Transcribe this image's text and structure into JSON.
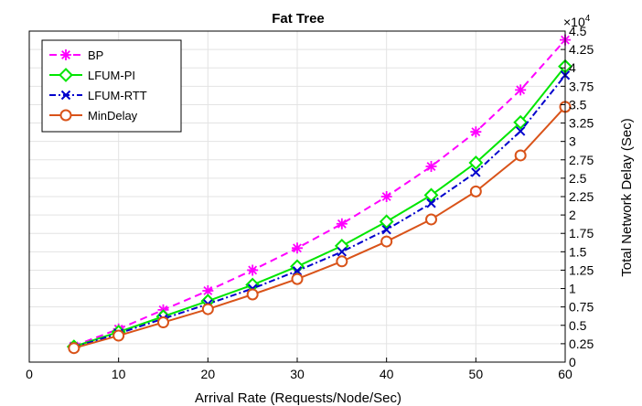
{
  "chart_data": {
    "type": "line",
    "title": "Fat Tree",
    "xlabel": "Arrival Rate (Requests/Node/Sec)",
    "ylabel": "Total Network Delay (Sec)",
    "y_axis_side": "right",
    "y_multiplier_label": "×10",
    "y_multiplier_exponent": "4",
    "xlim": [
      0,
      60
    ],
    "ylim": [
      0,
      4.5
    ],
    "x_ticks": [
      0,
      10,
      20,
      30,
      40,
      50,
      60
    ],
    "x_tick_labels": [
      "0",
      "10",
      "20",
      "30",
      "40",
      "50",
      "60"
    ],
    "y_ticks": [
      0,
      0.25,
      0.5,
      0.75,
      1,
      1.25,
      1.5,
      1.75,
      2,
      2.25,
      2.5,
      2.75,
      3,
      3.25,
      3.5,
      3.75,
      4,
      4.25,
      4.5
    ],
    "y_tick_labels": [
      "0",
      "0.25",
      "0.5",
      "0.75",
      "1",
      "1.25",
      "1.5",
      "1.75",
      "2",
      "2.25",
      "2.5",
      "2.75",
      "3",
      "3.25",
      "3.5",
      "3.75",
      "4",
      "4.25",
      "4.5"
    ],
    "grid": true,
    "legend_position": "top-left",
    "x": [
      5,
      10,
      15,
      20,
      25,
      30,
      35,
      40,
      45,
      50,
      55,
      60
    ],
    "series": [
      {
        "name": "BP",
        "color": "#ff00ff",
        "line_style": "dashed",
        "marker": "asterisk",
        "values": [
          0.22,
          0.45,
          0.71,
          0.97,
          1.25,
          1.55,
          1.88,
          2.25,
          2.66,
          3.13,
          3.7,
          4.38
        ]
      },
      {
        "name": "LFUM-PI",
        "color": "#00e600",
        "line_style": "solid",
        "marker": "diamond",
        "values": [
          0.21,
          0.41,
          0.62,
          0.83,
          1.05,
          1.3,
          1.58,
          1.91,
          2.27,
          2.71,
          3.26,
          4.02
        ]
      },
      {
        "name": "LFUM-RTT",
        "color": "#0000cc",
        "line_style": "dashdot",
        "marker": "x",
        "values": [
          0.2,
          0.39,
          0.59,
          0.79,
          1.0,
          1.24,
          1.5,
          1.8,
          2.16,
          2.58,
          3.14,
          3.9
        ]
      },
      {
        "name": "MinDelay",
        "color": "#d95319",
        "line_style": "solid",
        "marker": "circle",
        "values": [
          0.19,
          0.36,
          0.54,
          0.72,
          0.92,
          1.13,
          1.37,
          1.64,
          1.94,
          2.32,
          2.81,
          3.47
        ]
      }
    ]
  }
}
